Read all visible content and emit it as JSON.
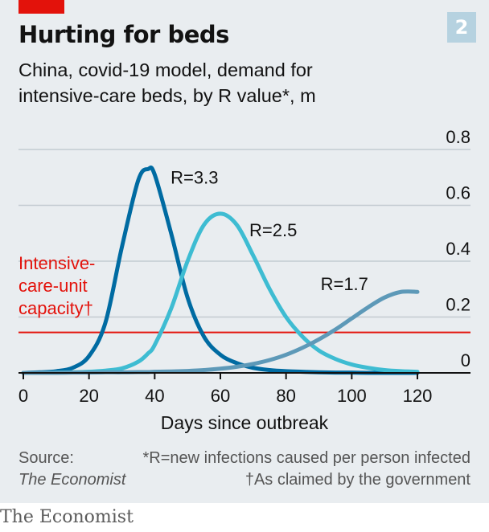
{
  "header": {
    "chart_number": "2",
    "title": "Hurting for beds",
    "subtitle_line1": "China, covid-19 model, demand for",
    "subtitle_line2": "intensive-care beds, by R value*, m"
  },
  "colors": {
    "panel": "#e9edf0",
    "brand_red": "#e3120b",
    "r33": "#006ba2",
    "r25": "#3ebcd2",
    "r17": "#5d99b8",
    "capacity": "#e3120b",
    "grid": "#c3cbd1",
    "axis": "#121212"
  },
  "chart_data": {
    "type": "line",
    "title": "Hurting for beds",
    "subtitle": "China, covid-19 model, demand for intensive-care beds, by R value*, m",
    "xlabel": "Days since outbreak",
    "ylabel": "",
    "xlim": [
      0,
      120
    ],
    "ylim": [
      0,
      0.8
    ],
    "x_ticks": [
      "0",
      "20",
      "40",
      "60",
      "80",
      "100",
      "120"
    ],
    "y_ticks": [
      "0",
      "0.2",
      "0.4",
      "0.6",
      "0.8"
    ],
    "x": [
      0,
      5,
      10,
      15,
      20,
      25,
      30,
      35,
      38,
      40,
      45,
      50,
      55,
      60,
      65,
      70,
      75,
      80,
      85,
      90,
      95,
      100,
      105,
      110,
      115,
      120
    ],
    "series": [
      {
        "name": "R=3.3",
        "label": "R=3.3",
        "values": [
          0.0,
          0.002,
          0.006,
          0.018,
          0.06,
          0.18,
          0.45,
          0.69,
          0.73,
          0.71,
          0.5,
          0.27,
          0.13,
          0.065,
          0.035,
          0.018,
          0.01,
          0.006,
          0.004,
          0.002,
          0.001,
          0.001,
          0.0,
          0.0,
          0.0,
          0.0
        ]
      },
      {
        "name": "R=2.5",
        "label": "R=2.5",
        "values": [
          0.0,
          0.0,
          0.001,
          0.002,
          0.004,
          0.008,
          0.016,
          0.04,
          0.07,
          0.1,
          0.23,
          0.4,
          0.53,
          0.57,
          0.53,
          0.42,
          0.3,
          0.2,
          0.13,
          0.08,
          0.05,
          0.03,
          0.018,
          0.01,
          0.006,
          0.004
        ]
      },
      {
        "name": "R=1.7",
        "label": "R=1.7",
        "values": [
          0.0,
          0.0,
          0.0,
          0.001,
          0.001,
          0.002,
          0.002,
          0.003,
          0.003,
          0.004,
          0.005,
          0.007,
          0.01,
          0.015,
          0.022,
          0.032,
          0.046,
          0.065,
          0.09,
          0.12,
          0.155,
          0.195,
          0.235,
          0.27,
          0.29,
          0.29
        ]
      }
    ],
    "reference_line": {
      "label_lines": [
        "Intensive-",
        "care-unit",
        "capacity†"
      ],
      "value": 0.145
    },
    "grid": true
  },
  "footer": {
    "source_label": "Source:",
    "source_name": "The Economist",
    "footnote_r": "*R=new infections caused per person infected",
    "footnote_dagger": "†As claimed by the government",
    "brand": "The Economist"
  }
}
